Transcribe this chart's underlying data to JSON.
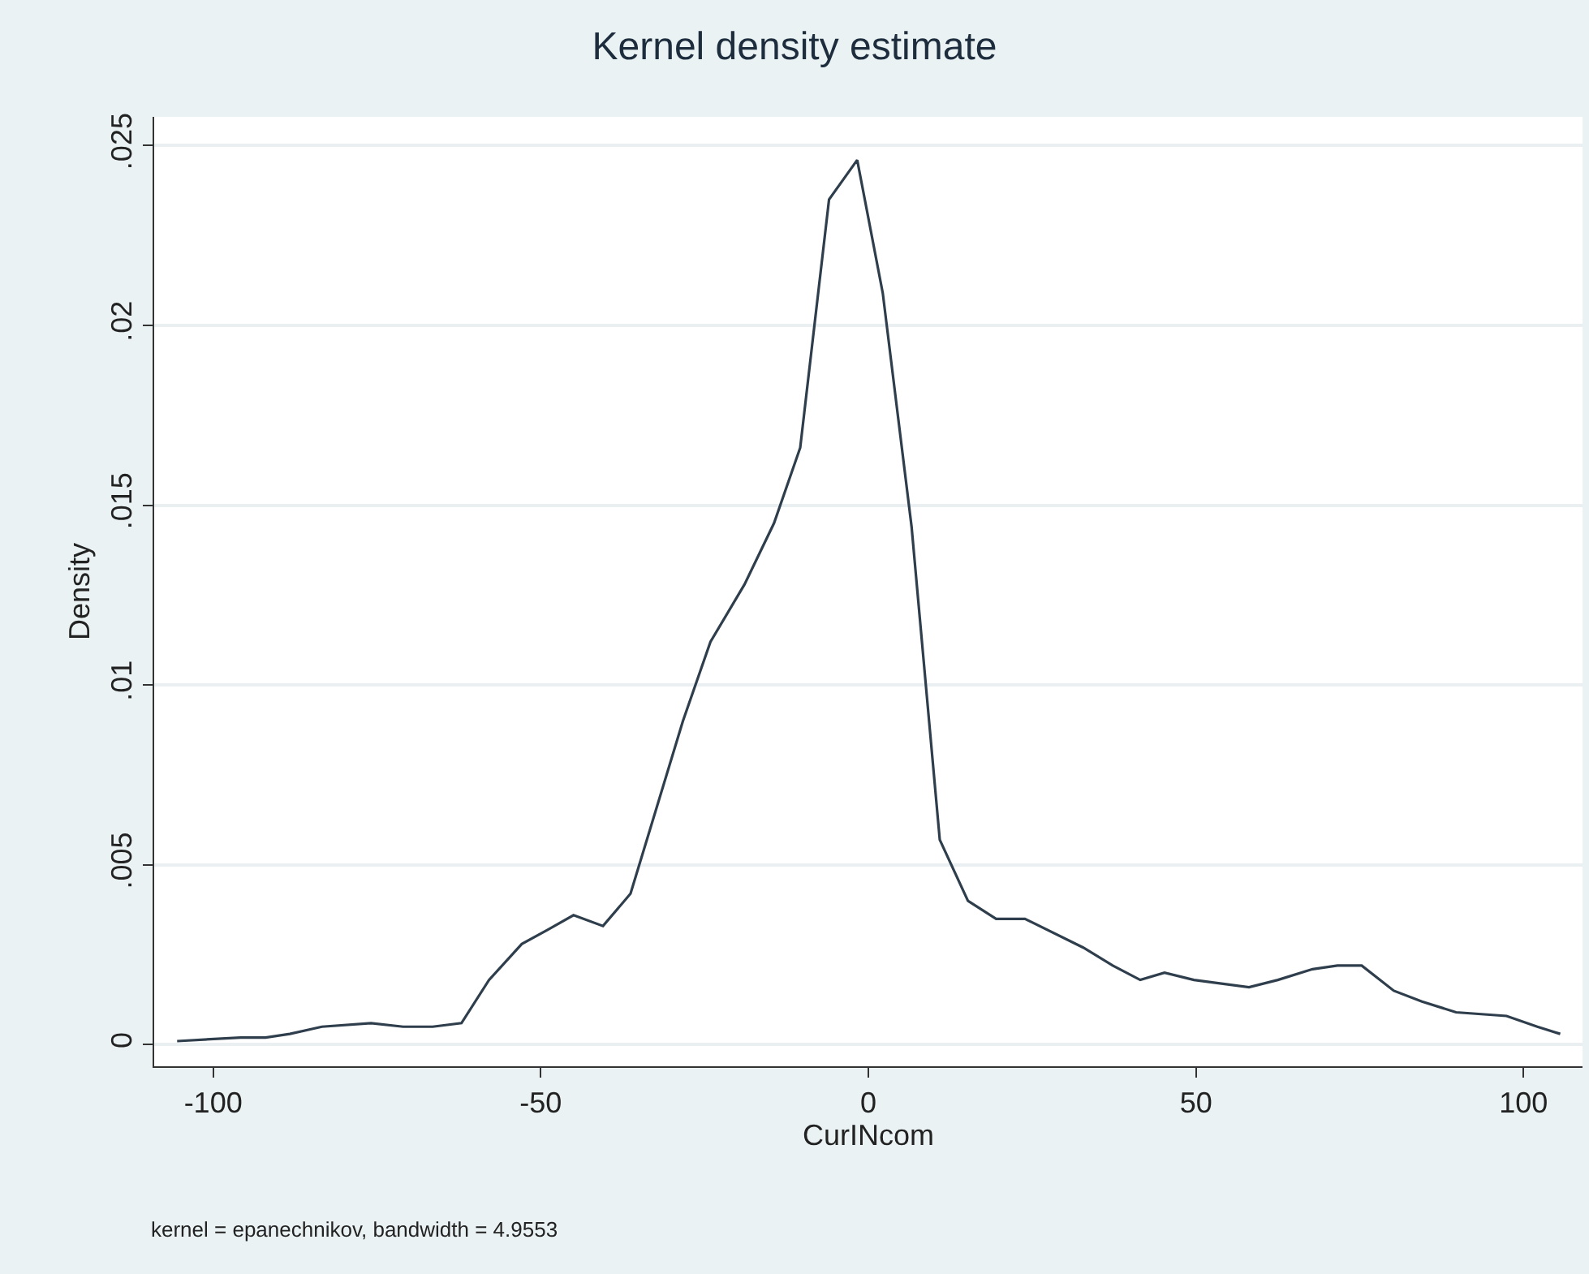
{
  "chart_data": {
    "type": "line",
    "title": "Kernel density estimate",
    "xlabel": "CurINcom",
    "ylabel": "Density",
    "annotations": [
      "kernel = epanechnikov, bandwidth = 4.9553"
    ],
    "x": [
      -105.5,
      -95.8,
      -92,
      -88.3,
      -83.4,
      -75.9,
      -71,
      -66.5,
      -62.1,
      -57.9,
      -52.9,
      -48.9,
      -45,
      -40.5,
      -36.3,
      -28.3,
      -24.1,
      -18.9,
      -14.4,
      -10.4,
      -6,
      -1.7,
      2.2,
      6.6,
      10.9,
      15.2,
      19.5,
      23.9,
      32.8,
      37.3,
      41.5,
      45.2,
      49.7,
      53.9,
      58.1,
      62.5,
      67.8,
      71.6,
      75.3,
      80.2,
      84.5,
      89.7,
      97.4,
      102.1,
      105.6
    ],
    "series": [
      {
        "color": "#2f3e4c",
        "values": [
          0.0001,
          0.0002,
          0.0002,
          0.0003,
          0.0005,
          0.0006,
          0.0005,
          0.0005,
          0.0006,
          0.0018,
          0.0028,
          0.0032,
          0.0036,
          0.0033,
          0.0042,
          0.009,
          0.0112,
          0.0128,
          0.0145,
          0.0166,
          0.0235,
          0.0246,
          0.0209,
          0.0144,
          0.0057,
          0.004,
          0.0035,
          0.0035,
          0.0027,
          0.0022,
          0.0018,
          0.002,
          0.0018,
          0.0017,
          0.0016,
          0.0018,
          0.0021,
          0.0022,
          0.0022,
          0.0015,
          0.0012,
          0.0009,
          0.0008,
          0.0005,
          0.0003
        ]
      }
    ],
    "xlim": [
      -109,
      109
    ],
    "xticks": [
      -100,
      -50,
      0,
      50,
      100
    ],
    "ylim": [
      -0.0006,
      0.0258
    ],
    "yticks": [
      {
        "value": 0,
        "label": "0"
      },
      {
        "value": 0.005,
        "label": ".005"
      },
      {
        "value": 0.01,
        "label": ".01"
      },
      {
        "value": 0.015,
        "label": ".015"
      },
      {
        "value": 0.02,
        "label": ".02"
      },
      {
        "value": 0.025,
        "label": ".025"
      }
    ],
    "grid": "y",
    "marker": "none",
    "line_style": "solid"
  }
}
